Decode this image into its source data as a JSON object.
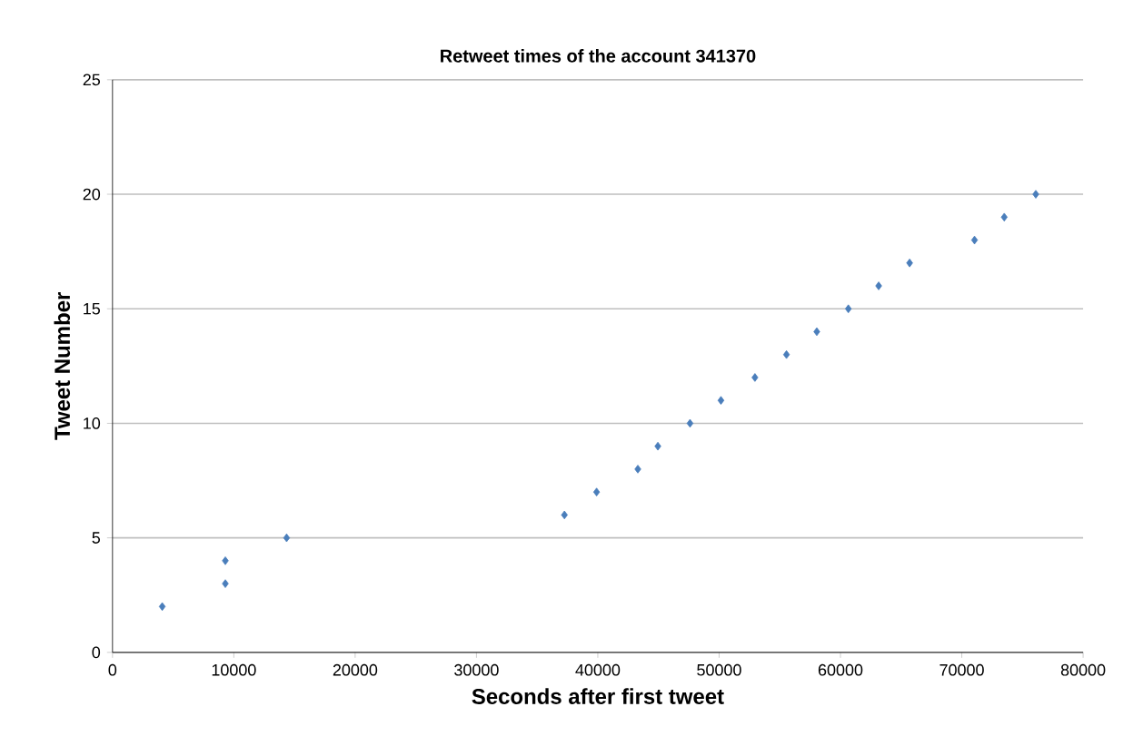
{
  "chart_data": {
    "type": "scatter",
    "title": "Retweet times of the account 341370",
    "xlabel": "Seconds after first tweet",
    "ylabel": "Tweet Number",
    "x": [
      4100,
      9300,
      9300,
      14350,
      37250,
      39900,
      43300,
      44950,
      47600,
      50150,
      52950,
      55550,
      58050,
      60650,
      63150,
      65700,
      71050,
      73500,
      76100
    ],
    "values": [
      2,
      3,
      4,
      5,
      6,
      7,
      8,
      9,
      10,
      11,
      12,
      13,
      14,
      15,
      16,
      17,
      18,
      19,
      20
    ],
    "color": "#4a7ebb",
    "marker": "diamond",
    "xlim": [
      0,
      80000
    ],
    "xticks": [
      0,
      10000,
      20000,
      30000,
      40000,
      50000,
      60000,
      70000,
      80000
    ],
    "ylim": [
      0,
      25
    ],
    "yticks": [
      0,
      5,
      10,
      15,
      20,
      25
    ],
    "grid": "y"
  }
}
